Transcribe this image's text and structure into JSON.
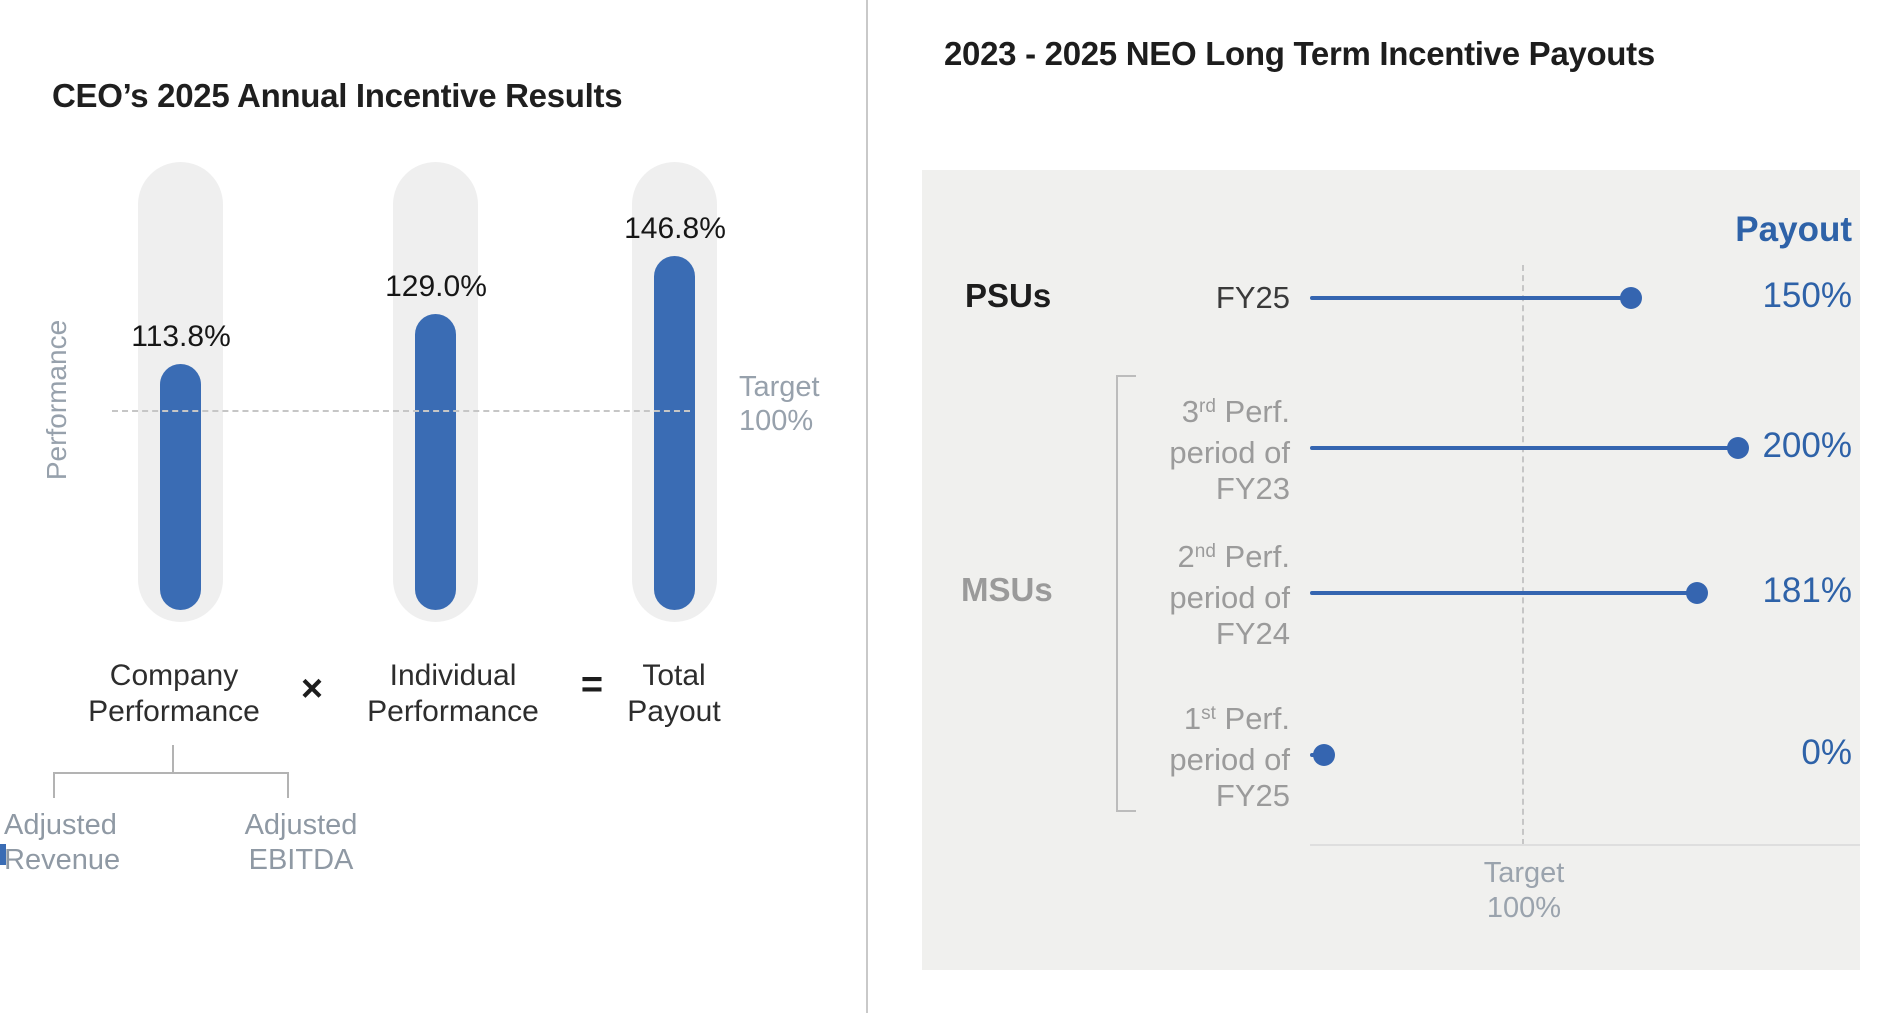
{
  "colors": {
    "bar_blue": "#3a6cb4",
    "line_blue": "#3565b0",
    "value_blue": "#2e62a8",
    "panel_gray": "#f0f0ee",
    "track_gray": "#efefef",
    "muted_text": "#97a1ac",
    "divider_gray": "#c9c9c9",
    "dash_gray": "#c6c6c6"
  },
  "chart_data": [
    {
      "type": "bar",
      "title": "CEO’s 2025 Annual Incentive Results",
      "ylabel": "Performance",
      "xlabel": "",
      "categories": [
        "Company Performance",
        "Individual Performance",
        "Total Payout"
      ],
      "category_label_lines": [
        [
          "Company",
          "Performance"
        ],
        [
          "Individual",
          "Performance"
        ],
        [
          "Total",
          "Payout"
        ]
      ],
      "values": [
        113.8,
        129.0,
        146.8
      ],
      "value_labels": [
        "113.8%",
        "129.0%",
        "146.8%"
      ],
      "target_line": {
        "value": 100,
        "label_lines": [
          "Target",
          "100%"
        ]
      },
      "formula_operators": [
        "×",
        "="
      ],
      "company_performance_components": [
        [
          "Adjusted",
          "Revenue"
        ],
        [
          "Adjusted",
          "EBITDA"
        ]
      ],
      "legend": "none",
      "grid": false
    },
    {
      "type": "lollipop",
      "title": "2023 - 2025 NEO Long Term Incentive Payouts",
      "value_column_header": "Payout",
      "groups": [
        {
          "label": "PSUs"
        },
        {
          "label": "MSUs"
        }
      ],
      "rows": [
        {
          "group": "PSUs",
          "label_text": "FY25",
          "label_parts": {
            "l1_pre": "FY25",
            "l1_sup": "",
            "l1_post": "",
            "l2": "",
            "l3": ""
          },
          "value": 150,
          "value_label": "150%"
        },
        {
          "group": "MSUs",
          "label_text": "3rd Perf. period of FY23",
          "label_parts": {
            "l1_pre": "3",
            "l1_sup": "rd",
            "l1_post": " Perf.",
            "l2": "period of",
            "l3": "FY23"
          },
          "value": 200,
          "value_label": "200%"
        },
        {
          "group": "MSUs",
          "label_text": "2nd Perf. period of FY24",
          "label_parts": {
            "l1_pre": "2",
            "l1_sup": "nd",
            "l1_post": " Perf.",
            "l2": "period of",
            "l3": "FY24"
          },
          "value": 181,
          "value_label": "181%"
        },
        {
          "group": "MSUs",
          "label_text": "1st Perf. period of FY25",
          "label_parts": {
            "l1_pre": "1",
            "l1_sup": "st",
            "l1_post": " Perf.",
            "l2": "period of",
            "l3": "FY25"
          },
          "value": 0,
          "value_label": "0%"
        }
      ],
      "target_line": {
        "value": 100,
        "label_lines": [
          "Target",
          "100%"
        ]
      },
      "xlim": [
        0,
        257
      ],
      "grid": false
    }
  ]
}
